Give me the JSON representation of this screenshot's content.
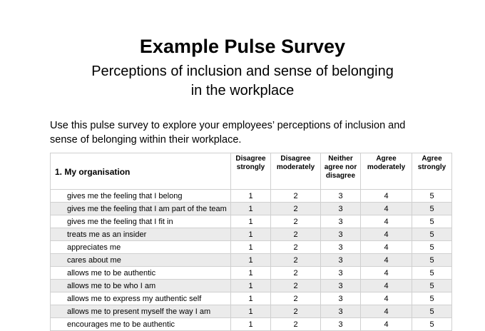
{
  "title": "Example Pulse Survey",
  "subtitle_line1": "Perceptions of inclusion and sense of belonging",
  "subtitle_line2": "in the workplace",
  "intro": "Use this pulse survey to explore your employees’ perceptions of inclusion and sense of belonging within their workplace.",
  "table": {
    "question": "1. My organisation",
    "scale": [
      "Disagree strongly",
      "Disagree moderately",
      "Neither agree nor disagree",
      "Agree moderately",
      "Agree strongly"
    ],
    "values": [
      "1",
      "2",
      "3",
      "4",
      "5"
    ],
    "statements": [
      "gives me the feeling that I belong",
      "gives me the feeling that I am part of the team",
      "gives me the feeling that I fit in",
      "treats me as an insider",
      "appreciates me",
      "cares about me",
      "allows me to be authentic",
      "allows me to be who I am",
      "allows me to express my authentic self",
      "allows me to present myself the way I am",
      "encourages me to be authentic"
    ]
  }
}
